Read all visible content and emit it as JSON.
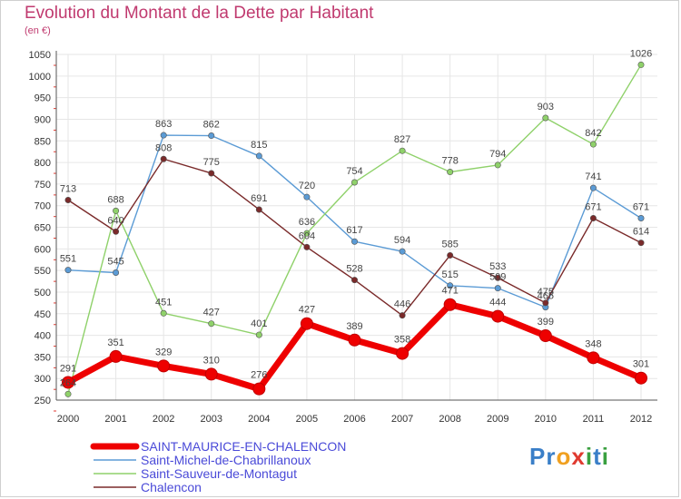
{
  "title": "Evolution du Montant de la Dette par Habitant",
  "subtitle": "(en €)",
  "logo": {
    "text": "Proxiti",
    "letters": [
      "P",
      "r",
      "o",
      "x",
      "i",
      "t",
      "i"
    ],
    "colors": [
      "#3a7fc8",
      "#3a7fc8",
      "#f0a020",
      "#e03a30",
      "#3aa040",
      "#3a7fc8",
      "#3aa040"
    ]
  },
  "chart_data": {
    "type": "line",
    "title": "Evolution du Montant de la Dette par Habitant",
    "ylabel": "(en €)",
    "xlabel": "",
    "x": [
      "2000",
      "2001",
      "2002",
      "2003",
      "2004",
      "2005",
      "2006",
      "2007",
      "2008",
      "2009",
      "2010",
      "2011",
      "2012"
    ],
    "ylim": [
      250,
      1050
    ],
    "yticks": [
      250,
      300,
      350,
      400,
      450,
      500,
      550,
      600,
      650,
      700,
      750,
      800,
      850,
      900,
      950,
      1000,
      1050
    ],
    "grid": true,
    "legend_position": "bottom-left",
    "series": [
      {
        "name": "SAINT-MAURICE-EN-CHALENCON",
        "color": "#ee0000",
        "emphasis": true,
        "values": [
          291,
          351,
          329,
          310,
          276,
          427,
          389,
          358,
          471,
          444,
          399,
          348,
          301
        ]
      },
      {
        "name": "Saint-Michel-de-Chabrillanoux",
        "color": "#5b9bd5",
        "emphasis": false,
        "values": [
          551,
          545,
          863,
          862,
          815,
          720,
          617,
          594,
          515,
          509,
          465,
          741,
          671
        ]
      },
      {
        "name": "Saint-Sauveur-de-Montagut",
        "color": "#8fd16a",
        "emphasis": false,
        "values": [
          264,
          688,
          451,
          427,
          401,
          636,
          754,
          827,
          778,
          794,
          903,
          842,
          1026
        ]
      },
      {
        "name": "Chalencon",
        "color": "#7a2a2a",
        "emphasis": false,
        "values": [
          713,
          640,
          808,
          775,
          691,
          604,
          528,
          446,
          585,
          533,
          475,
          671,
          614
        ]
      }
    ]
  }
}
